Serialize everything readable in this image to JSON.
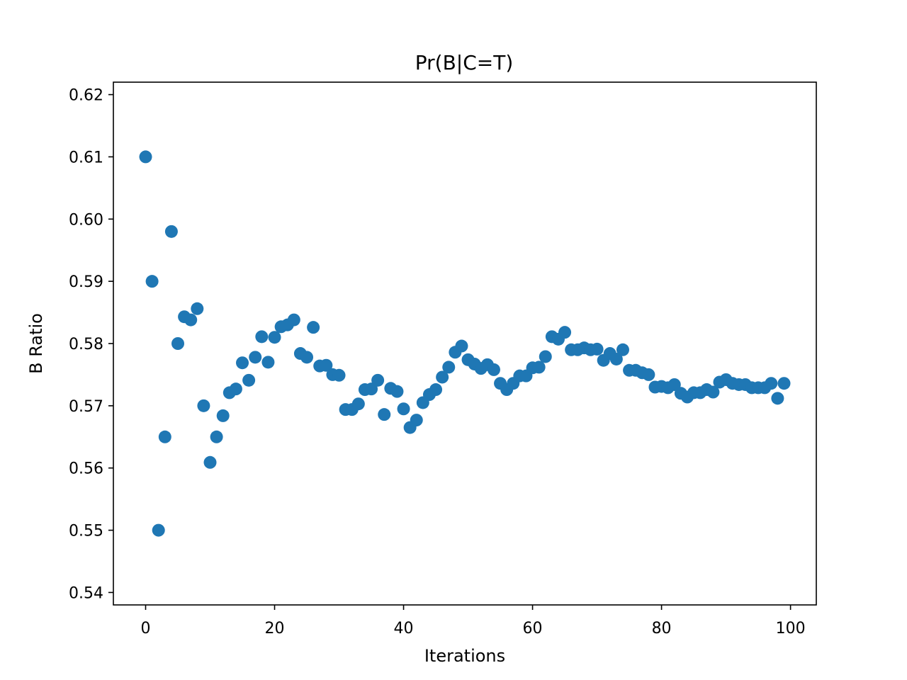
{
  "chart_data": {
    "type": "scatter",
    "title": "Pr(B|C=T)",
    "xlabel": "Iterations",
    "ylabel": "B Ratio",
    "xlim": [
      -5,
      104
    ],
    "ylim": [
      0.538,
      0.622
    ],
    "xticks": [
      0,
      20,
      40,
      60,
      80,
      100
    ],
    "yticks": [
      0.54,
      0.55,
      0.56,
      0.57,
      0.58,
      0.59,
      0.6,
      0.61,
      0.62
    ],
    "xtick_labels": [
      "0",
      "20",
      "40",
      "60",
      "80",
      "100"
    ],
    "ytick_labels": [
      "0.54",
      "0.55",
      "0.56",
      "0.57",
      "0.58",
      "0.59",
      "0.60",
      "0.61",
      "0.62"
    ],
    "grid": false,
    "marker_color": "#1f77b4",
    "x": [
      0,
      1,
      2,
      3,
      4,
      5,
      6,
      7,
      8,
      9,
      10,
      11,
      12,
      13,
      14,
      15,
      16,
      17,
      18,
      19,
      20,
      21,
      22,
      23,
      24,
      25,
      26,
      27,
      28,
      29,
      30,
      31,
      32,
      33,
      34,
      35,
      36,
      37,
      38,
      39,
      40,
      41,
      42,
      43,
      44,
      45,
      46,
      47,
      48,
      49,
      50,
      51,
      52,
      53,
      54,
      55,
      56,
      57,
      58,
      59,
      60,
      61,
      62,
      63,
      64,
      65,
      66,
      67,
      68,
      69,
      70,
      71,
      72,
      73,
      74,
      75,
      76,
      77,
      78,
      79,
      80,
      81,
      82,
      83,
      84,
      85,
      86,
      87,
      88,
      89,
      90,
      91,
      92,
      93,
      94,
      95,
      96,
      97,
      98,
      99
    ],
    "y": [
      0.61,
      0.59,
      0.55,
      0.565,
      0.598,
      0.58,
      0.5843,
      0.5838,
      0.5856,
      0.57,
      0.5609,
      0.565,
      0.5684,
      0.5721,
      0.5727,
      0.5769,
      0.5741,
      0.5778,
      0.5811,
      0.577,
      0.581,
      0.5827,
      0.583,
      0.5838,
      0.5784,
      0.5778,
      0.5826,
      0.5764,
      0.5765,
      0.575,
      0.5749,
      0.5694,
      0.5694,
      0.5703,
      0.5726,
      0.5727,
      0.5741,
      0.5686,
      0.5728,
      0.5723,
      0.5695,
      0.5665,
      0.5677,
      0.5705,
      0.5718,
      0.5726,
      0.5746,
      0.5762,
      0.5786,
      0.5796,
      0.5774,
      0.5767,
      0.576,
      0.5766,
      0.5758,
      0.5736,
      0.5726,
      0.5736,
      0.5748,
      0.5748,
      0.5761,
      0.5762,
      0.5779,
      0.5811,
      0.5807,
      0.5818,
      0.579,
      0.579,
      0.5793,
      0.579,
      0.5791,
      0.5773,
      0.5784,
      0.5775,
      0.579,
      0.5757,
      0.5757,
      0.5753,
      0.575,
      0.573,
      0.5731,
      0.5729,
      0.5734,
      0.572,
      0.5714,
      0.5721,
      0.5721,
      0.5726,
      0.5722,
      0.5738,
      0.5742,
      0.5736,
      0.5734,
      0.5734,
      0.5729,
      0.5729,
      0.5729,
      0.5736,
      0.5712,
      0.5736
    ]
  }
}
